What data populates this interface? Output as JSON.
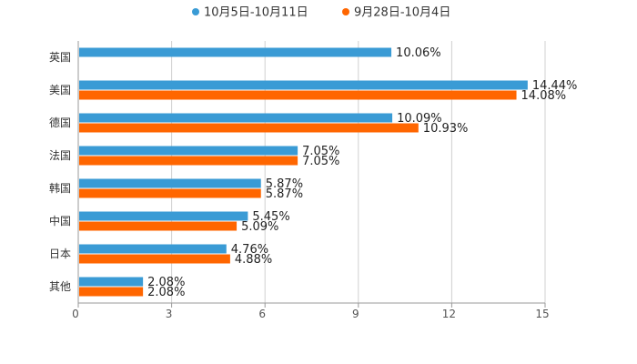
{
  "chart_data": {
    "type": "bar",
    "orientation": "horizontal",
    "categories": [
      "英国",
      "美国",
      "德国",
      "法国",
      "韩国",
      "中国",
      "日本",
      "其他"
    ],
    "series": [
      {
        "name": "10月5日-10月11日",
        "color": "#3a9bd5",
        "values": [
          10.06,
          14.44,
          10.09,
          7.05,
          5.87,
          5.45,
          4.76,
          2.08
        ],
        "labels": [
          "10.06%",
          "14.44%",
          "10.09%",
          "7.05%",
          "5.87%",
          "5.45%",
          "4.76%",
          "2.08%"
        ]
      },
      {
        "name": "9月28日-10月4日",
        "color": "#ff6600",
        "values": [
          null,
          14.08,
          10.93,
          7.05,
          5.87,
          5.09,
          4.88,
          2.08
        ],
        "labels": [
          "",
          "14.08%",
          "10.93%",
          "7.05%",
          "5.87%",
          "5.09%",
          "4.88%",
          "2.08%"
        ]
      }
    ],
    "xlim": [
      0,
      15
    ],
    "xticks": [
      0,
      3,
      6,
      9,
      12,
      15
    ],
    "xtick_labels": [
      "0",
      "3",
      "6",
      "9",
      "12",
      "15"
    ],
    "grid": true,
    "legend_position": "top-center",
    "title": "",
    "xlabel": "",
    "ylabel": ""
  }
}
